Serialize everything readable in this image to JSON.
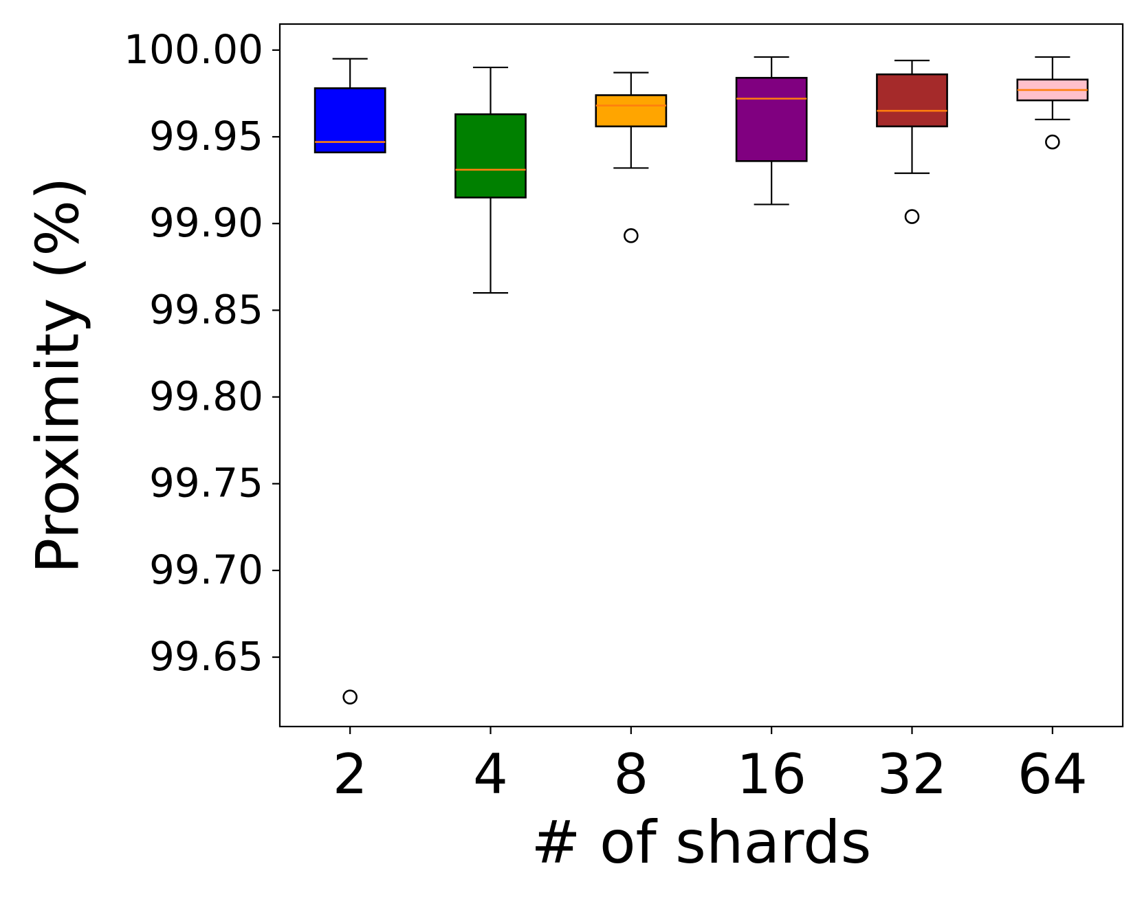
{
  "chart_data": {
    "type": "box",
    "title": "",
    "xlabel": "# of shards",
    "ylabel": "Proximity (%)",
    "categories": [
      "2",
      "4",
      "8",
      "16",
      "32",
      "64"
    ],
    "ylim": [
      99.61,
      100.015
    ],
    "yticks": [
      "99.65",
      "99.70",
      "99.75",
      "99.80",
      "99.85",
      "99.90",
      "99.95",
      "100.00"
    ],
    "grid": false,
    "legend": "none",
    "median_color": "#ff7f0e",
    "boxes": [
      {
        "category": "2",
        "whislo": 99.941,
        "q1": 99.941,
        "med": 99.947,
        "q3": 99.978,
        "whishi": 99.995,
        "fliers": [
          99.627
        ],
        "color": "#0000ff"
      },
      {
        "category": "4",
        "whislo": 99.86,
        "q1": 99.915,
        "med": 99.931,
        "q3": 99.963,
        "whishi": 99.99,
        "fliers": [],
        "color": "#008000"
      },
      {
        "category": "8",
        "whislo": 99.932,
        "q1": 99.956,
        "med": 99.968,
        "q3": 99.974,
        "whishi": 99.987,
        "fliers": [
          99.893
        ],
        "color": "#ffa500"
      },
      {
        "category": "16",
        "whislo": 99.911,
        "q1": 99.936,
        "med": 99.972,
        "q3": 99.984,
        "whishi": 99.996,
        "fliers": [],
        "color": "#800080"
      },
      {
        "category": "32",
        "whislo": 99.929,
        "q1": 99.956,
        "med": 99.965,
        "q3": 99.986,
        "whishi": 99.994,
        "fliers": [
          99.904
        ],
        "color": "#a52a2a"
      },
      {
        "category": "64",
        "whislo": 99.96,
        "q1": 99.971,
        "med": 99.977,
        "q3": 99.983,
        "whishi": 99.996,
        "fliers": [
          99.947
        ],
        "color": "#ffc0cb"
      }
    ]
  }
}
